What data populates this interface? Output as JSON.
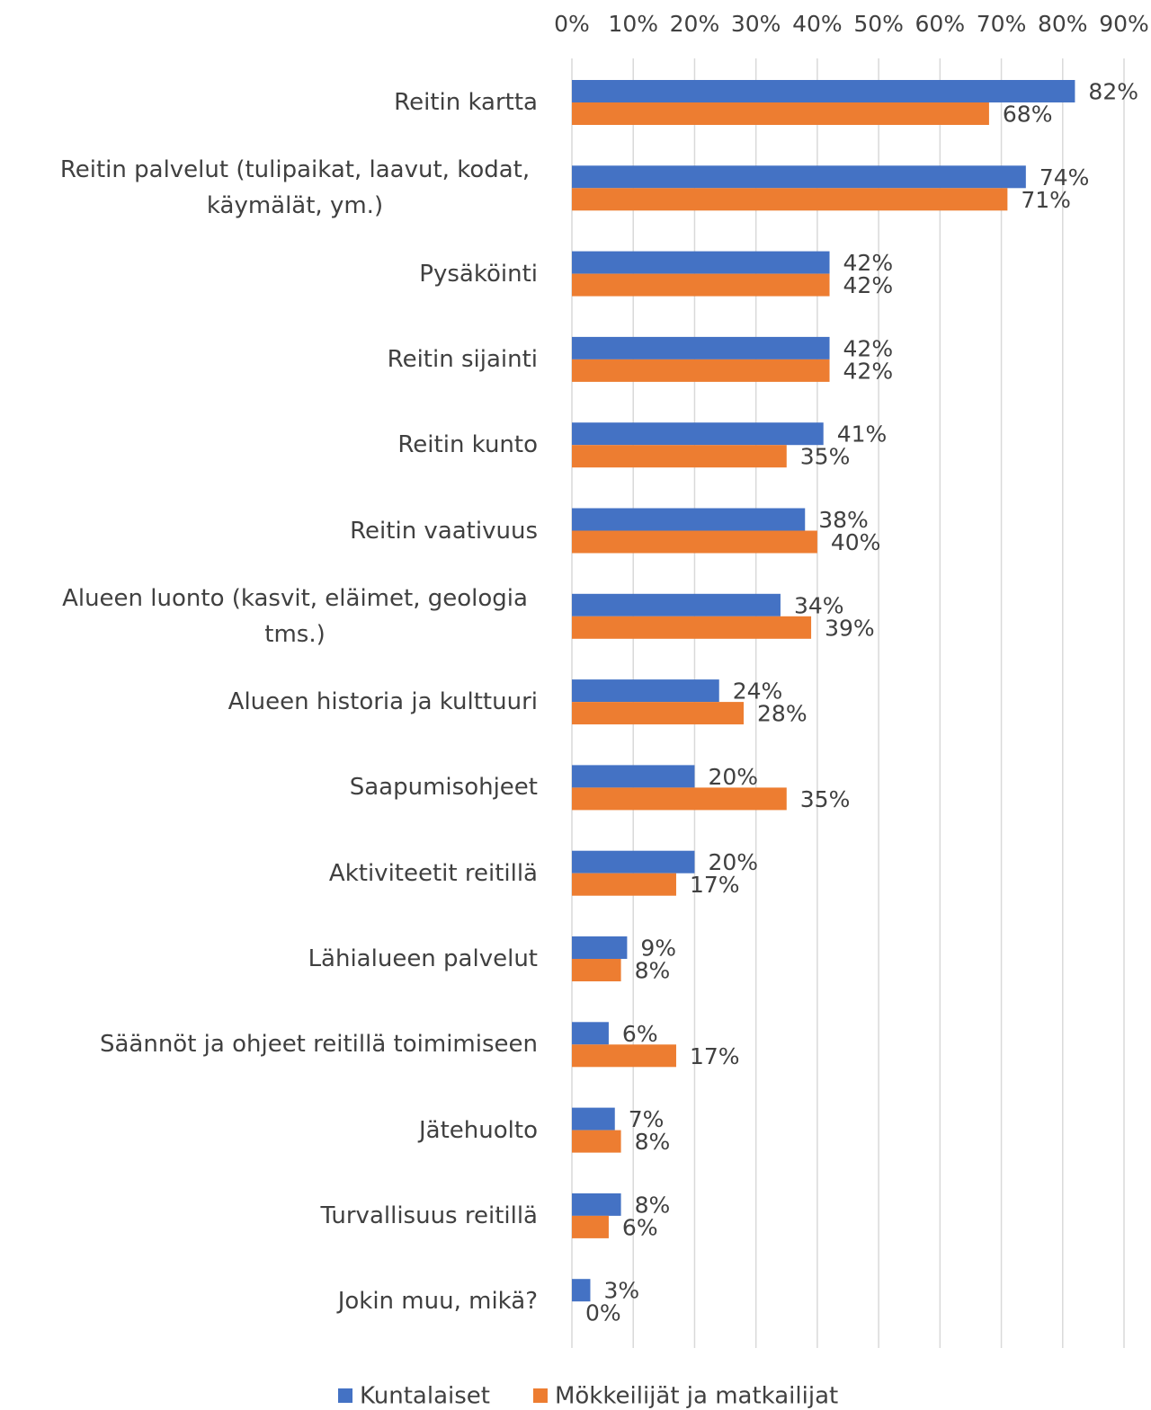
{
  "chart_data": {
    "type": "bar",
    "orientation": "horizontal",
    "categories": [
      "Reitin kartta",
      "Reitin palvelut (tulipaikat, laavut, kodat, käymälät, ym.)",
      "Pysäköinti",
      "Reitin sijainti",
      "Reitin kunto",
      "Reitin vaativuus",
      "Alueen luonto (kasvit, eläimet, geologia tms.)",
      "Alueen historia ja kulttuuri",
      "Saapumisohjeet",
      "Aktiviteetit reitillä",
      "Lähialueen palvelut",
      "Säännöt ja ohjeet reitillä toimimiseen",
      "Jätehuolto",
      "Turvallisuus reitillä",
      "Jokin muu, mikä?"
    ],
    "series": [
      {
        "name": "Kuntalaiset",
        "color": "#4472c4",
        "values": [
          82,
          74,
          42,
          42,
          41,
          38,
          34,
          24,
          20,
          20,
          9,
          6,
          7,
          8,
          3
        ],
        "value_labels": [
          "82%",
          "74%",
          "42%",
          "42%",
          "41%",
          "38%",
          "34%",
          "24%",
          "20%",
          "20%",
          "9%",
          "6%",
          "7%",
          "8%",
          "3%"
        ]
      },
      {
        "name": "Mökkeilijät ja matkailijat",
        "color": "#ed7d31",
        "values": [
          68,
          71,
          42,
          42,
          35,
          40,
          39,
          28,
          35,
          17,
          8,
          17,
          8,
          6,
          0
        ],
        "value_labels": [
          "68%",
          "71%",
          "42%",
          "42%",
          "35%",
          "40%",
          "39%",
          "28%",
          "35%",
          "17%",
          "8%",
          "17%",
          "8%",
          "6%",
          "0%"
        ]
      }
    ],
    "xlim": [
      0,
      90
    ],
    "xticks": [
      {
        "value": 0,
        "label": "0%"
      },
      {
        "value": 10,
        "label": "10%"
      },
      {
        "value": 20,
        "label": "20%"
      },
      {
        "value": 30,
        "label": "30%"
      },
      {
        "value": 40,
        "label": "40%"
      },
      {
        "value": 50,
        "label": "50%"
      },
      {
        "value": 60,
        "label": "60%"
      },
      {
        "value": 70,
        "label": "70%"
      },
      {
        "value": 80,
        "label": "80%"
      },
      {
        "value": 90,
        "label": "90%"
      }
    ],
    "grid": true,
    "legend": "bottom"
  }
}
